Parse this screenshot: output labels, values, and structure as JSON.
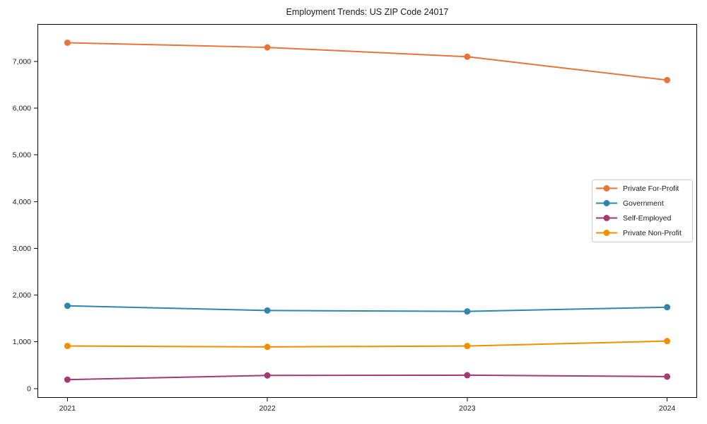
{
  "figure": {
    "title": "Employment Trends: US ZIP Code 24017",
    "background": "#ffffff",
    "spine_color": "#000000",
    "text_color": "#1a1a1a"
  },
  "chart_data": {
    "type": "line",
    "title": "Employment Trends: US ZIP Code 24017",
    "xlabel": "",
    "ylabel": "",
    "x": [
      2021,
      2022,
      2023,
      2024
    ],
    "x_tick_labels": [
      "2021",
      "2022",
      "2023",
      "2024"
    ],
    "series": [
      {
        "name": "Private For-Profit",
        "color": "#e8743b",
        "values": [
          7400,
          7300,
          7100,
          6600
        ]
      },
      {
        "name": "Government",
        "color": "#2e86ab",
        "values": [
          1770,
          1670,
          1650,
          1740
        ]
      },
      {
        "name": "Self-Employed",
        "color": "#a23b72",
        "values": [
          190,
          280,
          285,
          255
        ]
      },
      {
        "name": "Private Non-Profit",
        "color": "#f18f01",
        "values": [
          910,
          890,
          910,
          1015
        ]
      }
    ],
    "xlim": [
      2020.85,
      2024.15
    ],
    "ylim": [
      -200,
      7800
    ],
    "y_ticks": [
      0,
      1000,
      2000,
      3000,
      4000,
      5000,
      6000,
      7000
    ],
    "y_tick_labels": [
      "0",
      "1,000",
      "2,000",
      "3,000",
      "4,000",
      "5,000",
      "6,000",
      "7,000"
    ],
    "grid": false,
    "legend_position": "center right",
    "legend_border_color": "#cccccc",
    "marker": "circle"
  }
}
